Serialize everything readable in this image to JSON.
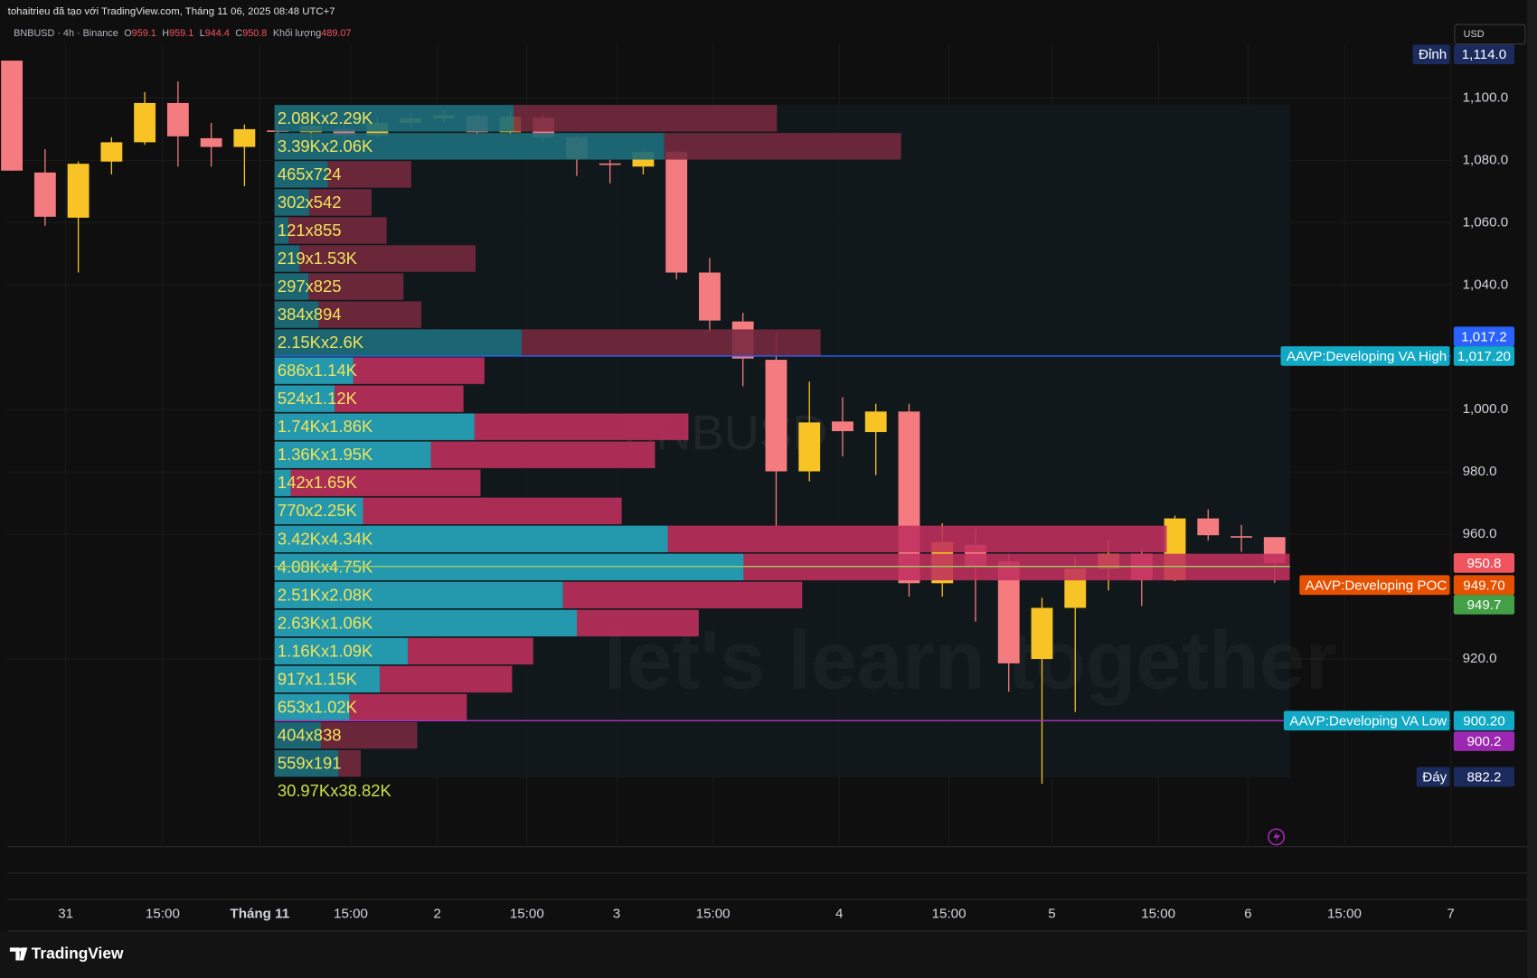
{
  "chart_data": {
    "type": "candlestick",
    "attribution": "tohaitrieu đã tạo với TradingView.com, Tháng 11 06, 2025 08:48 UTC+7",
    "legend": {
      "symbol": "BNBUSD · 4h · Binance",
      "o": "O",
      "h": "H",
      "l": "L",
      "c": "C",
      "volume_label": "Khối lượng",
      "volume": 489.07
    },
    "currency": "USD",
    "watermarks": [
      "BNBUSD",
      "let's learn together"
    ],
    "brand": "TradingView",
    "up_color": "#f7c325",
    "down_color": "#f47b80",
    "grid": true,
    "ylim": [
      860.4,
      1117.3
    ],
    "yticks": [
      {
        "value": 1100,
        "label": "1,100.0"
      },
      {
        "value": 1080,
        "label": "1,080.0"
      },
      {
        "value": 1060,
        "label": "1,060.0"
      },
      {
        "value": 1040,
        "label": "1,040.0"
      },
      {
        "value": 1000,
        "label": "1,000.0"
      },
      {
        "value": 980,
        "label": "980.0"
      },
      {
        "value": 960,
        "label": "960.0"
      },
      {
        "value": 920,
        "label": "920.0"
      }
    ],
    "xlim": [
      -0.12,
      43.3
    ],
    "xticks": [
      {
        "value": 1.62,
        "label": "31"
      },
      {
        "value": 4.54,
        "label": "15:00"
      },
      {
        "value": 7.46,
        "label": "Tháng 11"
      },
      {
        "value": 10.2,
        "label": "15:00"
      },
      {
        "value": 12.8,
        "label": "2"
      },
      {
        "value": 15.5,
        "label": "15:00"
      },
      {
        "value": 18.2,
        "label": "3"
      },
      {
        "value": 21.1,
        "label": "15:00"
      },
      {
        "value": 24.9,
        "label": "4"
      },
      {
        "value": 28.2,
        "label": "15:00"
      },
      {
        "value": 31.3,
        "label": "5"
      },
      {
        "value": 34.5,
        "label": "15:00"
      },
      {
        "value": 37.2,
        "label": "6"
      },
      {
        "value": 40.1,
        "label": "15:00"
      },
      {
        "value": 43.3,
        "label": "7"
      }
    ],
    "candles": {
      "open": [
        1112,
        1076.1,
        1061.6,
        1079.6,
        1085.8,
        1098.4,
        1087.1,
        1084.3,
        1089.6,
        1089,
        1090,
        1088,
        1092,
        1093.5,
        1094.3,
        1089,
        1093.7,
        1087.4,
        1079,
        1078,
        1082.7,
        1044,
        1028.3,
        1016,
        980.2,
        996.2,
        992.8,
        999.4,
        944.3,
        956.6,
        951.3,
        920,
        936.4,
        949,
        953.8,
        945.3,
        965.1,
        959.4,
        959.1
      ],
      "high": [
        1112,
        1083.6,
        1079.6,
        1087.4,
        1101.9,
        1105.3,
        1092,
        1091.5,
        1091.5,
        1092,
        1093,
        1094,
        1095,
        1096,
        1095,
        1095.5,
        1095,
        1088,
        1080.2,
        1083,
        1083,
        1048.7,
        1031.1,
        1024.6,
        1009,
        1004,
        1001.9,
        1001.9,
        963.5,
        961.6,
        953.8,
        939.6,
        952.5,
        958,
        955.5,
        966,
        968,
        963,
        959.1
      ],
      "low": [
        1076.7,
        1059,
        1044,
        1075.5,
        1085,
        1078,
        1078,
        1071.7,
        1084.3,
        1085,
        1086,
        1087,
        1090,
        1092,
        1088,
        1088,
        1086,
        1075,
        1072.6,
        1075.5,
        1041.8,
        1025,
        1007.5,
        962.4,
        977,
        985,
        979,
        940,
        940,
        932,
        909.5,
        880,
        903,
        942,
        937,
        945,
        958,
        954.4,
        944.4
      ],
      "close": [
        1076.7,
        1061.9,
        1078.9,
        1085.8,
        1098.4,
        1087.7,
        1084.3,
        1090,
        1089.4,
        1091,
        1088,
        1092,
        1093.5,
        1094.5,
        1089,
        1094,
        1087.4,
        1080.5,
        1078.6,
        1082.7,
        1044,
        1028.6,
        1016.4,
        980.2,
        995.9,
        993.1,
        999.4,
        944.3,
        957.5,
        949.7,
        918.6,
        936.4,
        949,
        953.8,
        945.3,
        965.1,
        959.7,
        959.1,
        950.8
      ]
    },
    "profile": {
      "range": [
        882,
        1098
      ],
      "buy": [
        2080,
        3390,
        465,
        302,
        121,
        219,
        297,
        384,
        2150,
        686,
        524,
        1740,
        1360,
        142,
        770,
        3420,
        4080,
        2510,
        2630,
        1160,
        917,
        653,
        404,
        559
      ],
      "sell": [
        2290,
        2060,
        724,
        542,
        855,
        1530,
        825,
        894,
        2600,
        1140,
        1120,
        1860,
        1950,
        1650,
        2250,
        4340,
        4750,
        2080,
        1060,
        1090,
        1150,
        1020,
        838,
        191
      ],
      "value_labels": [
        "2.08Kx2.29K",
        "3.39Kx2.06K",
        "465x724",
        "302x542",
        "121x855",
        "219x1.53K",
        "297x825",
        "384x894",
        "2.15Kx2.6K",
        "686x1.14K",
        "524x1.12K",
        "1.74Kx1.86K",
        "1.36Kx1.95K",
        "142x1.65K",
        "770x2.25K",
        "3.42Kx4.34K",
        "4.08Kx4.75K",
        "2.51Kx2.08K",
        "2.63Kx1.06K",
        "1.16Kx1.09K",
        "917x1.15K",
        "653x1.02K",
        "404x838",
        "559x191"
      ],
      "total_label": "30.97Kx38.82K",
      "colors": {
        "buy": "#26a4ba",
        "sell": "#c0305d",
        "buy_outside": "#1c6e79",
        "sell_outside": "#76293f"
      }
    },
    "price_labels": [
      {
        "text": "Đỉnh",
        "label": "1,114.0",
        "value": 1114,
        "color": "#1b2b5e"
      },
      {
        "label": "1,017.2",
        "value": 1017.2,
        "color": "#2962ff"
      },
      {
        "text": "AAVP:Developing VA High",
        "label": "1,017.20",
        "value": 1017.2,
        "color": "#12a9c4"
      },
      {
        "label": "950.8",
        "value": 950.8,
        "color": "#f0555f"
      },
      {
        "text": "AAVP:Developing POC",
        "label": "949.70",
        "value": 949.7,
        "color": "#e65100"
      },
      {
        "label": "949.7",
        "value": 949.7,
        "color": "#43a047"
      },
      {
        "text": "AAVP:Developing VA Low",
        "label": "900.20",
        "value": 900.2,
        "color": "#12a9c4"
      },
      {
        "label": "900.2",
        "value": 900.2,
        "color": "#9c27b0"
      },
      {
        "text": "Đáy",
        "label": "882.2",
        "value": 882.2,
        "color": "#1b2b5e"
      }
    ]
  }
}
